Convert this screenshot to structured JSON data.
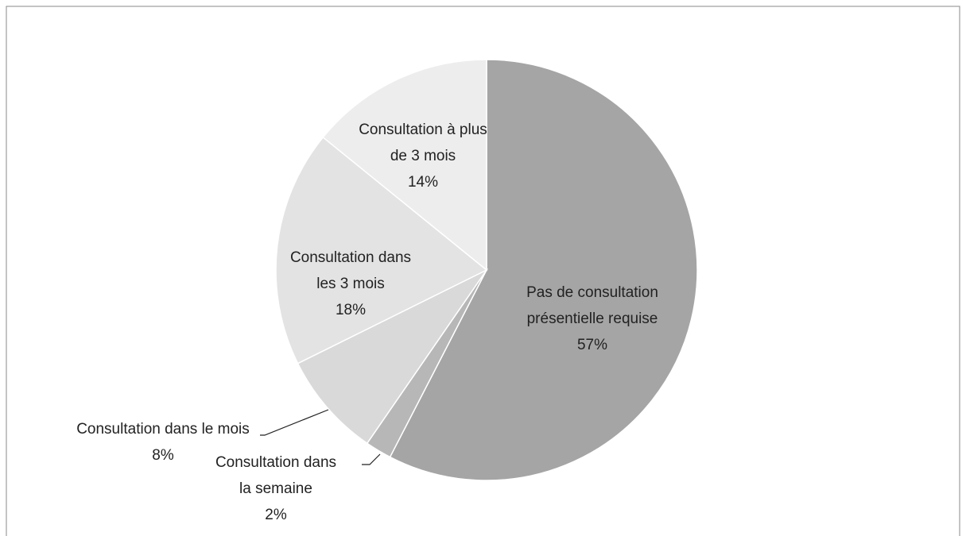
{
  "chart_data": {
    "type": "pie",
    "categories": [
      "Pas de consultation présentielle requise",
      "Consultation dans la semaine",
      "Consultation dans le mois",
      "Consultation dans les 3 mois",
      "Consultation à plus de 3 mois"
    ],
    "values": [
      57,
      2,
      8,
      18,
      14
    ],
    "value_labels": [
      "57%",
      "2%",
      "8%",
      "18%",
      "14%"
    ],
    "colors": [
      "#a5a5a5",
      "#b7b7b7",
      "#d9d9d9",
      "#e3e3e3",
      "#ededed"
    ]
  }
}
